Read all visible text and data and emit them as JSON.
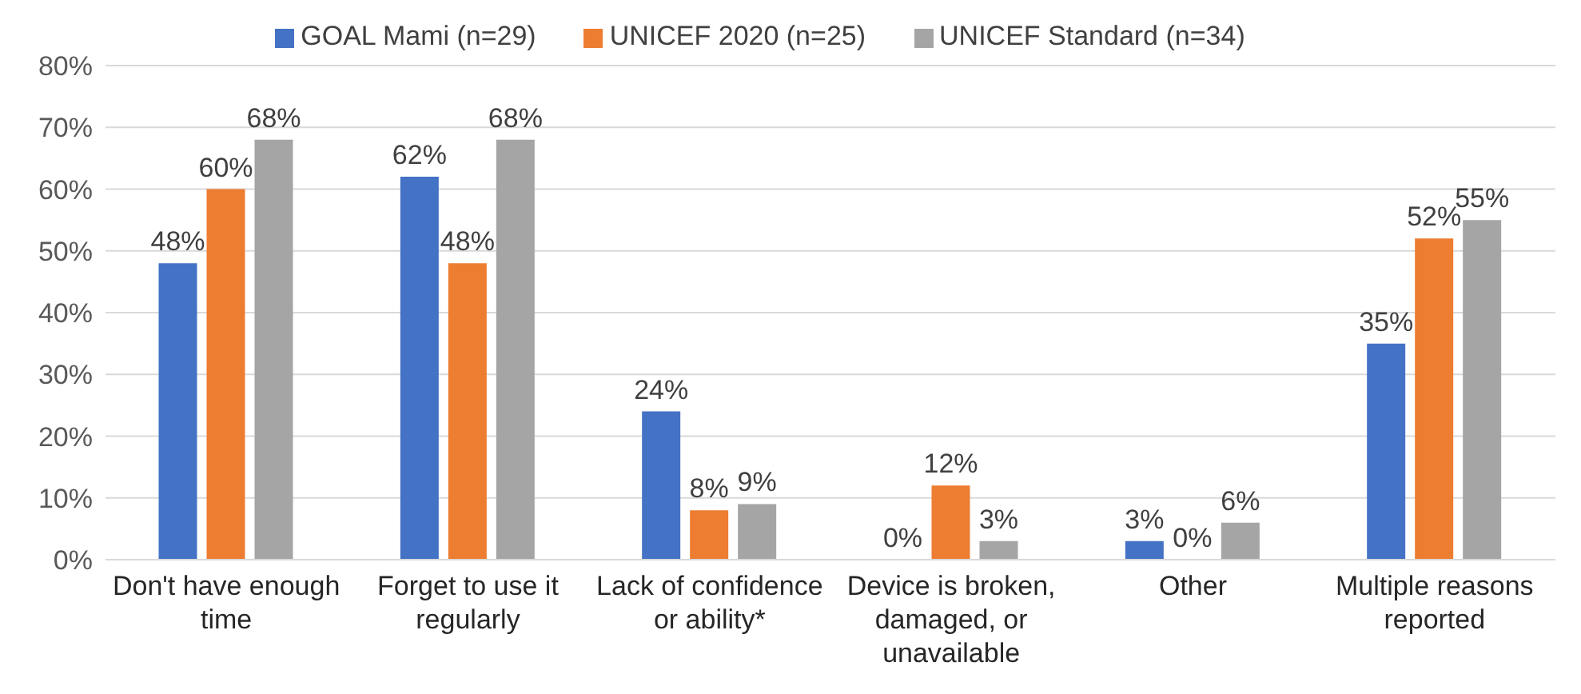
{
  "chart_data": {
    "type": "bar",
    "categories": [
      "Don't have enough time",
      "Forget to use it regularly",
      "Lack of confidence or ability*",
      "Device is broken, damaged, or unavailable",
      "Other",
      "Multiple reasons reported"
    ],
    "series": [
      {
        "name": "GOAL Mami (n=29)",
        "color": "#4472c4",
        "values": [
          48,
          62,
          24,
          0,
          3,
          35
        ],
        "value_labels": [
          "48%",
          "62%",
          "24%",
          "0%",
          "3%",
          "35%"
        ]
      },
      {
        "name": "UNICEF 2020 (n=25)",
        "color": "#ed7d31",
        "values": [
          60,
          48,
          8,
          12,
          0,
          52
        ],
        "value_labels": [
          "60%",
          "48%",
          "8%",
          "12%",
          "0%",
          "52%"
        ]
      },
      {
        "name": "UNICEF Standard (n=34)",
        "color": "#a5a5a5",
        "values": [
          68,
          68,
          9,
          3,
          6,
          55
        ],
        "value_labels": [
          "68%",
          "68%",
          "9%",
          "3%",
          "6%",
          "55%"
        ]
      }
    ],
    "ylim": [
      0,
      80
    ],
    "yticks": [
      {
        "value": 0,
        "label": "0%"
      },
      {
        "value": 10,
        "label": "10%"
      },
      {
        "value": 20,
        "label": "20%"
      },
      {
        "value": 30,
        "label": "30%"
      },
      {
        "value": 40,
        "label": "40%"
      },
      {
        "value": 50,
        "label": "50%"
      },
      {
        "value": 60,
        "label": "60%"
      },
      {
        "value": 70,
        "label": "70%"
      },
      {
        "value": 80,
        "label": "80%"
      }
    ],
    "grid": "y",
    "legend": "top",
    "data_labels": true
  }
}
